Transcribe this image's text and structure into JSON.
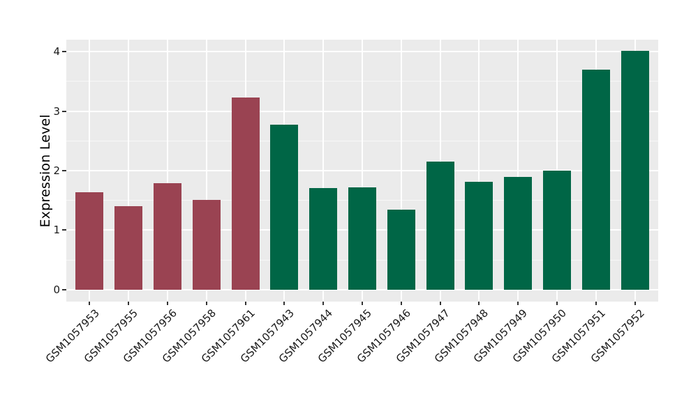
{
  "chart_data": {
    "type": "bar",
    "title": "",
    "xlabel": "",
    "ylabel": "Expression Level",
    "ylim": [
      -0.2,
      4.2
    ],
    "yticks": [
      0,
      1,
      2,
      3,
      4
    ],
    "yticks_minor": [
      0.5,
      1.5,
      2.5,
      3.5
    ],
    "grid": true,
    "legend": false,
    "plot_background": "#EBEBEB",
    "gridline_color": "#FFFFFF",
    "categories": [
      "GSM1057953",
      "GSM1057955",
      "GSM1057956",
      "GSM1057958",
      "GSM1057961",
      "GSM1057943",
      "GSM1057944",
      "GSM1057945",
      "GSM1057946",
      "GSM1057947",
      "GSM1057948",
      "GSM1057949",
      "GSM1057950",
      "GSM1057951",
      "GSM1057952"
    ],
    "values": [
      1.64,
      1.4,
      1.79,
      1.51,
      3.23,
      2.77,
      1.71,
      1.72,
      1.35,
      2.15,
      1.81,
      1.9,
      2.0,
      3.7,
      4.01
    ],
    "bar_groups": [
      "red",
      "red",
      "red",
      "red",
      "red",
      "green",
      "green",
      "green",
      "green",
      "green",
      "green",
      "green",
      "green",
      "green",
      "green"
    ],
    "group_colors": {
      "red": "#9A4352",
      "green": "#006646"
    }
  }
}
